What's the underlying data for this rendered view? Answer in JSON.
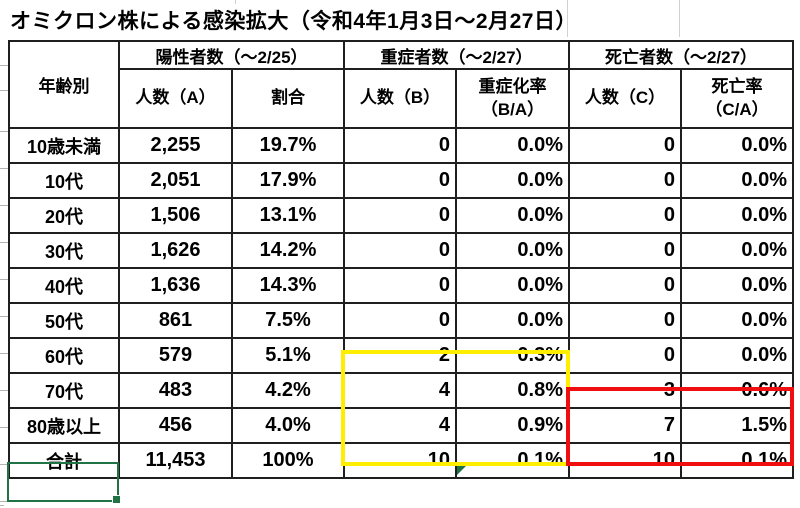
{
  "title": "オミクロン株による感染拡大（令和4年1月3日～2月27日）",
  "table": {
    "corner_header": "年齢別",
    "group_headers": [
      "陽性者数（～2/25）",
      "重症者数（～2/27）",
      "死亡者数（～2/27）"
    ],
    "sub_headers": [
      "人数（A）",
      "割合",
      "人数（B）",
      "重症化率\n（B/A）",
      "人数（C）",
      "死亡率\n（C/A）"
    ],
    "rows": [
      {
        "label": "10歳未満",
        "values": [
          "2,255",
          "19.7%",
          "0",
          "0.0%",
          "0",
          "0.0%"
        ]
      },
      {
        "label": "10代",
        "values": [
          "2,051",
          "17.9%",
          "0",
          "0.0%",
          "0",
          "0.0%"
        ]
      },
      {
        "label": "20代",
        "values": [
          "1,506",
          "13.1%",
          "0",
          "0.0%",
          "0",
          "0.0%"
        ]
      },
      {
        "label": "30代",
        "values": [
          "1,626",
          "14.2%",
          "0",
          "0.0%",
          "0",
          "0.0%"
        ]
      },
      {
        "label": "40代",
        "values": [
          "1,636",
          "14.3%",
          "0",
          "0.0%",
          "0",
          "0.0%"
        ]
      },
      {
        "label": "50代",
        "values": [
          "861",
          "7.5%",
          "0",
          "0.0%",
          "0",
          "0.0%"
        ]
      },
      {
        "label": "60代",
        "values": [
          "579",
          "5.1%",
          "2",
          "0.3%",
          "0",
          "0.0%"
        ]
      },
      {
        "label": "70代",
        "values": [
          "483",
          "4.2%",
          "4",
          "0.8%",
          "3",
          "0.6%"
        ]
      },
      {
        "label": "80歳以上",
        "values": [
          "456",
          "4.0%",
          "4",
          "0.9%",
          "7",
          "1.5%"
        ]
      }
    ],
    "total_row": {
      "label": "合計",
      "values": [
        "11,453",
        "100%",
        "10",
        "0.1%",
        "10",
        "0.1%"
      ]
    }
  },
  "annotations": {
    "severe_highlight_color": "#ffee00",
    "death_highlight_color": "#f00f0f",
    "selected_cell_color": "#217346",
    "error_indicator_color": "#1e7145",
    "selected_cell_label": "合計"
  }
}
